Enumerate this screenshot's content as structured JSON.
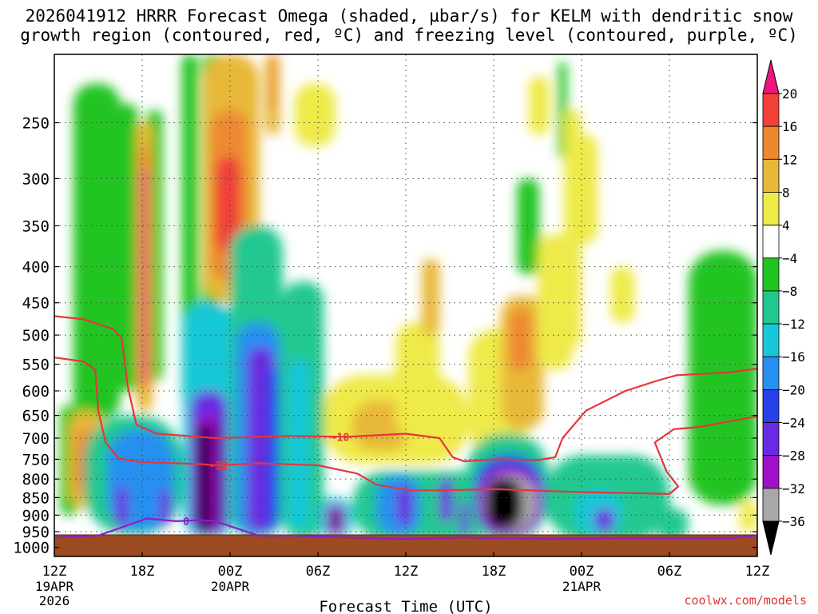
{
  "header": {
    "title_line1": "2026041912 HRRR Forecast Omega (shaded, µbar/s) for KELM with dendritic snow",
    "title_line2": "growth region (contoured, red, ºC) and freezing level (contoured, purple, ºC)"
  },
  "credit": "coolwx.com/models",
  "chart_data": {
    "type": "heatmap",
    "xlabel": "Forecast Time (UTC)",
    "ylabel": "",
    "x_hours_range": [
      0,
      48
    ],
    "pressure_range_hpa": [
      200,
      1030
    ],
    "x_ticks": [
      {
        "h": 0,
        "label": "12Z",
        "sub": [
          "19APR",
          "2026"
        ]
      },
      {
        "h": 6,
        "label": "18Z",
        "sub": []
      },
      {
        "h": 12,
        "label": "00Z",
        "sub": [
          "20APR"
        ]
      },
      {
        "h": 18,
        "label": "06Z",
        "sub": []
      },
      {
        "h": 24,
        "label": "12Z",
        "sub": []
      },
      {
        "h": 30,
        "label": "18Z",
        "sub": []
      },
      {
        "h": 36,
        "label": "00Z",
        "sub": [
          "21APR"
        ]
      },
      {
        "h": 42,
        "label": "06Z",
        "sub": []
      },
      {
        "h": 48,
        "label": "12Z",
        "sub": []
      }
    ],
    "y_ticks": [
      250,
      300,
      350,
      400,
      450,
      500,
      550,
      600,
      650,
      700,
      750,
      800,
      850,
      900,
      950,
      1000
    ],
    "colorbar": {
      "labels": [
        "20",
        "16",
        "12",
        "8",
        "4",
        "−4",
        "−8",
        "−12",
        "−16",
        "−20",
        "−24",
        "−28",
        "−32",
        "−36"
      ],
      "colors": [
        "#f0147d",
        "#f04038",
        "#ee8830",
        "#e8b838",
        "#eeea48",
        "#ffffff",
        "#20c420",
        "#20c890",
        "#18c8d8",
        "#2890f0",
        "#2840e8",
        "#6a2ae0",
        "#a010c8",
        "#a8a8a8",
        "#000000"
      ]
    },
    "omega_cells": [
      {
        "h0": 1.3,
        "h1": 4.5,
        "p0": 220,
        "p1": 660,
        "v": -6
      },
      {
        "h0": 0.4,
        "h1": 1.6,
        "p0": 630,
        "p1": 900,
        "v": -6
      },
      {
        "h0": 4.2,
        "h1": 5.7,
        "p0": 235,
        "p1": 600,
        "v": -6
      },
      {
        "h0": 6.3,
        "h1": 7.4,
        "p0": 240,
        "p1": 580,
        "v": -6
      },
      {
        "h0": 8.7,
        "h1": 9.8,
        "p0": 200,
        "p1": 620,
        "v": -6
      },
      {
        "h0": 10.1,
        "h1": 11.3,
        "p0": 200,
        "p1": 560,
        "v": -6
      },
      {
        "h0": 31.6,
        "h1": 33.1,
        "p0": 300,
        "p1": 410,
        "v": -6
      },
      {
        "h0": 34.4,
        "h1": 35.0,
        "p0": 205,
        "p1": 280,
        "v": -6
      },
      {
        "h0": 43.3,
        "h1": 48.0,
        "p0": 380,
        "p1": 870,
        "v": -6
      },
      {
        "h0": 1.0,
        "h1": 3.4,
        "p0": 640,
        "p1": 880,
        "v": 8
      },
      {
        "h0": 1.5,
        "h1": 2.6,
        "p0": 680,
        "p1": 840,
        "v": 14
      },
      {
        "h0": 1.8,
        "h1": 2.2,
        "p0": 730,
        "p1": 820,
        "v": 19
      },
      {
        "h0": 5.6,
        "h1": 6.7,
        "p0": 250,
        "p1": 640,
        "v": 8
      },
      {
        "h0": 5.8,
        "h1": 6.5,
        "p0": 270,
        "p1": 600,
        "v": 14
      },
      {
        "h0": 5.95,
        "h1": 6.35,
        "p0": 290,
        "p1": 580,
        "v": 22
      },
      {
        "h0": 5.7,
        "h1": 6.4,
        "p0": 840,
        "p1": 950,
        "v": 10
      },
      {
        "h0": 10.2,
        "h1": 14.0,
        "p0": 200,
        "p1": 450,
        "v": 8
      },
      {
        "h0": 10.7,
        "h1": 13.2,
        "p0": 240,
        "p1": 420,
        "v": 14
      },
      {
        "h0": 11.0,
        "h1": 12.7,
        "p0": 280,
        "p1": 380,
        "v": 18
      },
      {
        "h0": 14.4,
        "h1": 15.4,
        "p0": 200,
        "p1": 260,
        "v": 8
      },
      {
        "h0": 14.7,
        "h1": 15.1,
        "p0": 200,
        "p1": 240,
        "v": 14
      },
      {
        "h0": 16.4,
        "h1": 19.2,
        "p0": 220,
        "p1": 270,
        "v": 6
      },
      {
        "h0": 18.3,
        "h1": 28.3,
        "p0": 570,
        "p1": 760,
        "v": 6
      },
      {
        "h0": 20.3,
        "h1": 24.3,
        "p0": 620,
        "p1": 730,
        "v": 10
      },
      {
        "h0": 23.3,
        "h1": 26.3,
        "p0": 480,
        "p1": 700,
        "v": 6
      },
      {
        "h0": 25.1,
        "h1": 26.3,
        "p0": 390,
        "p1": 500,
        "v": 8
      },
      {
        "h0": 28.3,
        "h1": 32.3,
        "p0": 490,
        "p1": 740,
        "v": 6
      },
      {
        "h0": 30.5,
        "h1": 33.4,
        "p0": 440,
        "p1": 680,
        "v": 9
      },
      {
        "h0": 31.1,
        "h1": 32.6,
        "p0": 460,
        "p1": 560,
        "v": 13
      },
      {
        "h0": 33.0,
        "h1": 35.4,
        "p0": 360,
        "p1": 560,
        "v": 6
      },
      {
        "h0": 34.8,
        "h1": 36.0,
        "p0": 240,
        "p1": 520,
        "v": 7
      },
      {
        "h0": 35.3,
        "h1": 37.1,
        "p0": 260,
        "p1": 370,
        "v": 6
      },
      {
        "h0": 32.4,
        "h1": 33.8,
        "p0": 215,
        "p1": 260,
        "v": 6
      },
      {
        "h0": 38.0,
        "h1": 39.6,
        "p0": 400,
        "p1": 480,
        "v": 6
      },
      {
        "h0": 46.8,
        "h1": 48.0,
        "p0": 860,
        "p1": 950,
        "v": 6
      },
      {
        "h0": 8.8,
        "h1": 12.2,
        "p0": 450,
        "p1": 970,
        "v": -14
      },
      {
        "h0": 9.3,
        "h1": 11.8,
        "p0": 600,
        "p1": 960,
        "v": -24
      },
      {
        "h0": 9.6,
        "h1": 11.4,
        "p0": 650,
        "p1": 955,
        "v": -30
      },
      {
        "h0": 9.8,
        "h1": 10.6,
        "p0": 670,
        "p1": 950,
        "v": -40
      },
      {
        "h0": 11.0,
        "h1": 11.3,
        "p0": 660,
        "p1": 940,
        "v": -40
      },
      {
        "h0": 12.0,
        "h1": 15.6,
        "p0": 350,
        "p1": 970,
        "v": -10
      },
      {
        "h0": 12.4,
        "h1": 15.4,
        "p0": 480,
        "p1": 960,
        "v": -18
      },
      {
        "h0": 13.2,
        "h1": 15.0,
        "p0": 520,
        "p1": 950,
        "v": -26
      },
      {
        "h0": 14.5,
        "h1": 15.2,
        "p0": 560,
        "p1": 940,
        "v": -22
      },
      {
        "h0": 15.6,
        "h1": 18.4,
        "p0": 420,
        "p1": 970,
        "v": -8
      },
      {
        "h0": 16.0,
        "h1": 17.4,
        "p0": 540,
        "p1": 940,
        "v": -14
      },
      {
        "h0": 2.0,
        "h1": 8.8,
        "p0": 650,
        "p1": 960,
        "v": -8
      },
      {
        "h0": 3.6,
        "h1": 8.2,
        "p0": 680,
        "p1": 945,
        "v": -16
      },
      {
        "h0": 4.2,
        "h1": 5.0,
        "p0": 820,
        "p1": 940,
        "v": -26
      },
      {
        "h0": 7.2,
        "h1": 7.9,
        "p0": 830,
        "p1": 930,
        "v": -26
      },
      {
        "h0": 18.0,
        "h1": 20.4,
        "p0": 850,
        "p1": 970,
        "v": -12
      },
      {
        "h0": 18.6,
        "h1": 19.8,
        "p0": 870,
        "p1": 960,
        "v": -30
      },
      {
        "h0": 19.0,
        "h1": 19.4,
        "p0": 890,
        "p1": 940,
        "v": -40
      },
      {
        "h0": 20.4,
        "h1": 30.3,
        "p0": 780,
        "p1": 975,
        "v": -8
      },
      {
        "h0": 22.0,
        "h1": 25.0,
        "p0": 790,
        "p1": 960,
        "v": -18
      },
      {
        "h0": 23.4,
        "h1": 24.4,
        "p0": 820,
        "p1": 930,
        "v": -26
      },
      {
        "h0": 26.3,
        "h1": 27.2,
        "p0": 800,
        "p1": 920,
        "v": -24
      },
      {
        "h0": 27.7,
        "h1": 28.3,
        "p0": 860,
        "p1": 960,
        "v": -26
      },
      {
        "h0": 28.2,
        "h1": 33.7,
        "p0": 690,
        "p1": 975,
        "v": -10
      },
      {
        "h0": 28.7,
        "h1": 33.4,
        "p0": 740,
        "p1": 965,
        "v": -20
      },
      {
        "h0": 29.0,
        "h1": 33.2,
        "p0": 770,
        "p1": 960,
        "v": -30
      },
      {
        "h0": 29.3,
        "h1": 32.9,
        "p0": 790,
        "p1": 945,
        "v": -33
      },
      {
        "h0": 29.5,
        "h1": 31.9,
        "p0": 800,
        "p1": 940,
        "v": -40
      },
      {
        "h0": 33.5,
        "h1": 42.0,
        "p0": 740,
        "p1": 975,
        "v": -8
      },
      {
        "h0": 35.6,
        "h1": 38.8,
        "p0": 830,
        "p1": 955,
        "v": -14
      },
      {
        "h0": 36.9,
        "h1": 38.2,
        "p0": 880,
        "p1": 950,
        "v": -26
      },
      {
        "h0": 41.0,
        "h1": 43.3,
        "p0": 880,
        "p1": 975,
        "v": -8
      }
    ],
    "dgz_lines": [
      {
        "label": "-18",
        "label_at_h": 19.5,
        "points": [
          [
            0,
            470
          ],
          [
            2,
            475
          ],
          [
            4,
            490
          ],
          [
            4.6,
            505
          ],
          [
            5.0,
            590
          ],
          [
            5.6,
            670
          ],
          [
            7,
            690
          ],
          [
            11,
            700
          ],
          [
            16,
            695
          ],
          [
            20,
            697
          ],
          [
            24,
            690
          ],
          [
            26.3,
            700
          ],
          [
            27.2,
            745
          ],
          [
            28.0,
            755
          ],
          [
            30.2,
            750
          ],
          [
            33,
            752
          ],
          [
            34.2,
            745
          ],
          [
            34.7,
            700
          ],
          [
            36.3,
            640
          ],
          [
            39,
            600
          ],
          [
            41.2,
            580
          ],
          [
            42.5,
            570
          ],
          [
            46,
            565
          ],
          [
            48,
            558
          ]
        ]
      },
      {
        "label": "-12",
        "label_at_h": 11.2,
        "points": [
          [
            0,
            538
          ],
          [
            2,
            545
          ],
          [
            2.8,
            560
          ],
          [
            3.0,
            640
          ],
          [
            3.5,
            710
          ],
          [
            4.4,
            748
          ],
          [
            6,
            757
          ],
          [
            10,
            762
          ],
          [
            11,
            765
          ],
          [
            14,
            760
          ],
          [
            18,
            765
          ],
          [
            20.7,
            786
          ],
          [
            22.0,
            815
          ],
          [
            24.3,
            830
          ],
          [
            26.3,
            830
          ],
          [
            30.3,
            827
          ],
          [
            36,
            835
          ],
          [
            40.2,
            838
          ],
          [
            42,
            840
          ],
          [
            42.6,
            820
          ],
          [
            41.8,
            780
          ],
          [
            41.0,
            710
          ],
          [
            42.3,
            680
          ],
          [
            44,
            675
          ],
          [
            48,
            652
          ]
        ]
      }
    ],
    "freezing_line": {
      "label": "0",
      "label_at_h": 9.0,
      "points": [
        [
          0,
          968
        ],
        [
          3,
          962
        ],
        [
          4.4,
          940
        ],
        [
          6.3,
          910
        ],
        [
          8.3,
          918
        ],
        [
          10,
          915
        ],
        [
          11,
          918
        ],
        [
          12.8,
          945
        ],
        [
          14,
          963
        ],
        [
          16,
          962
        ],
        [
          18,
          965
        ],
        [
          20,
          968
        ],
        [
          24,
          973
        ],
        [
          28,
          968
        ],
        [
          30,
          970
        ],
        [
          34,
          972
        ],
        [
          40,
          970
        ],
        [
          46,
          970
        ],
        [
          47.5,
          965
        ],
        [
          48,
          962
        ]
      ]
    }
  }
}
